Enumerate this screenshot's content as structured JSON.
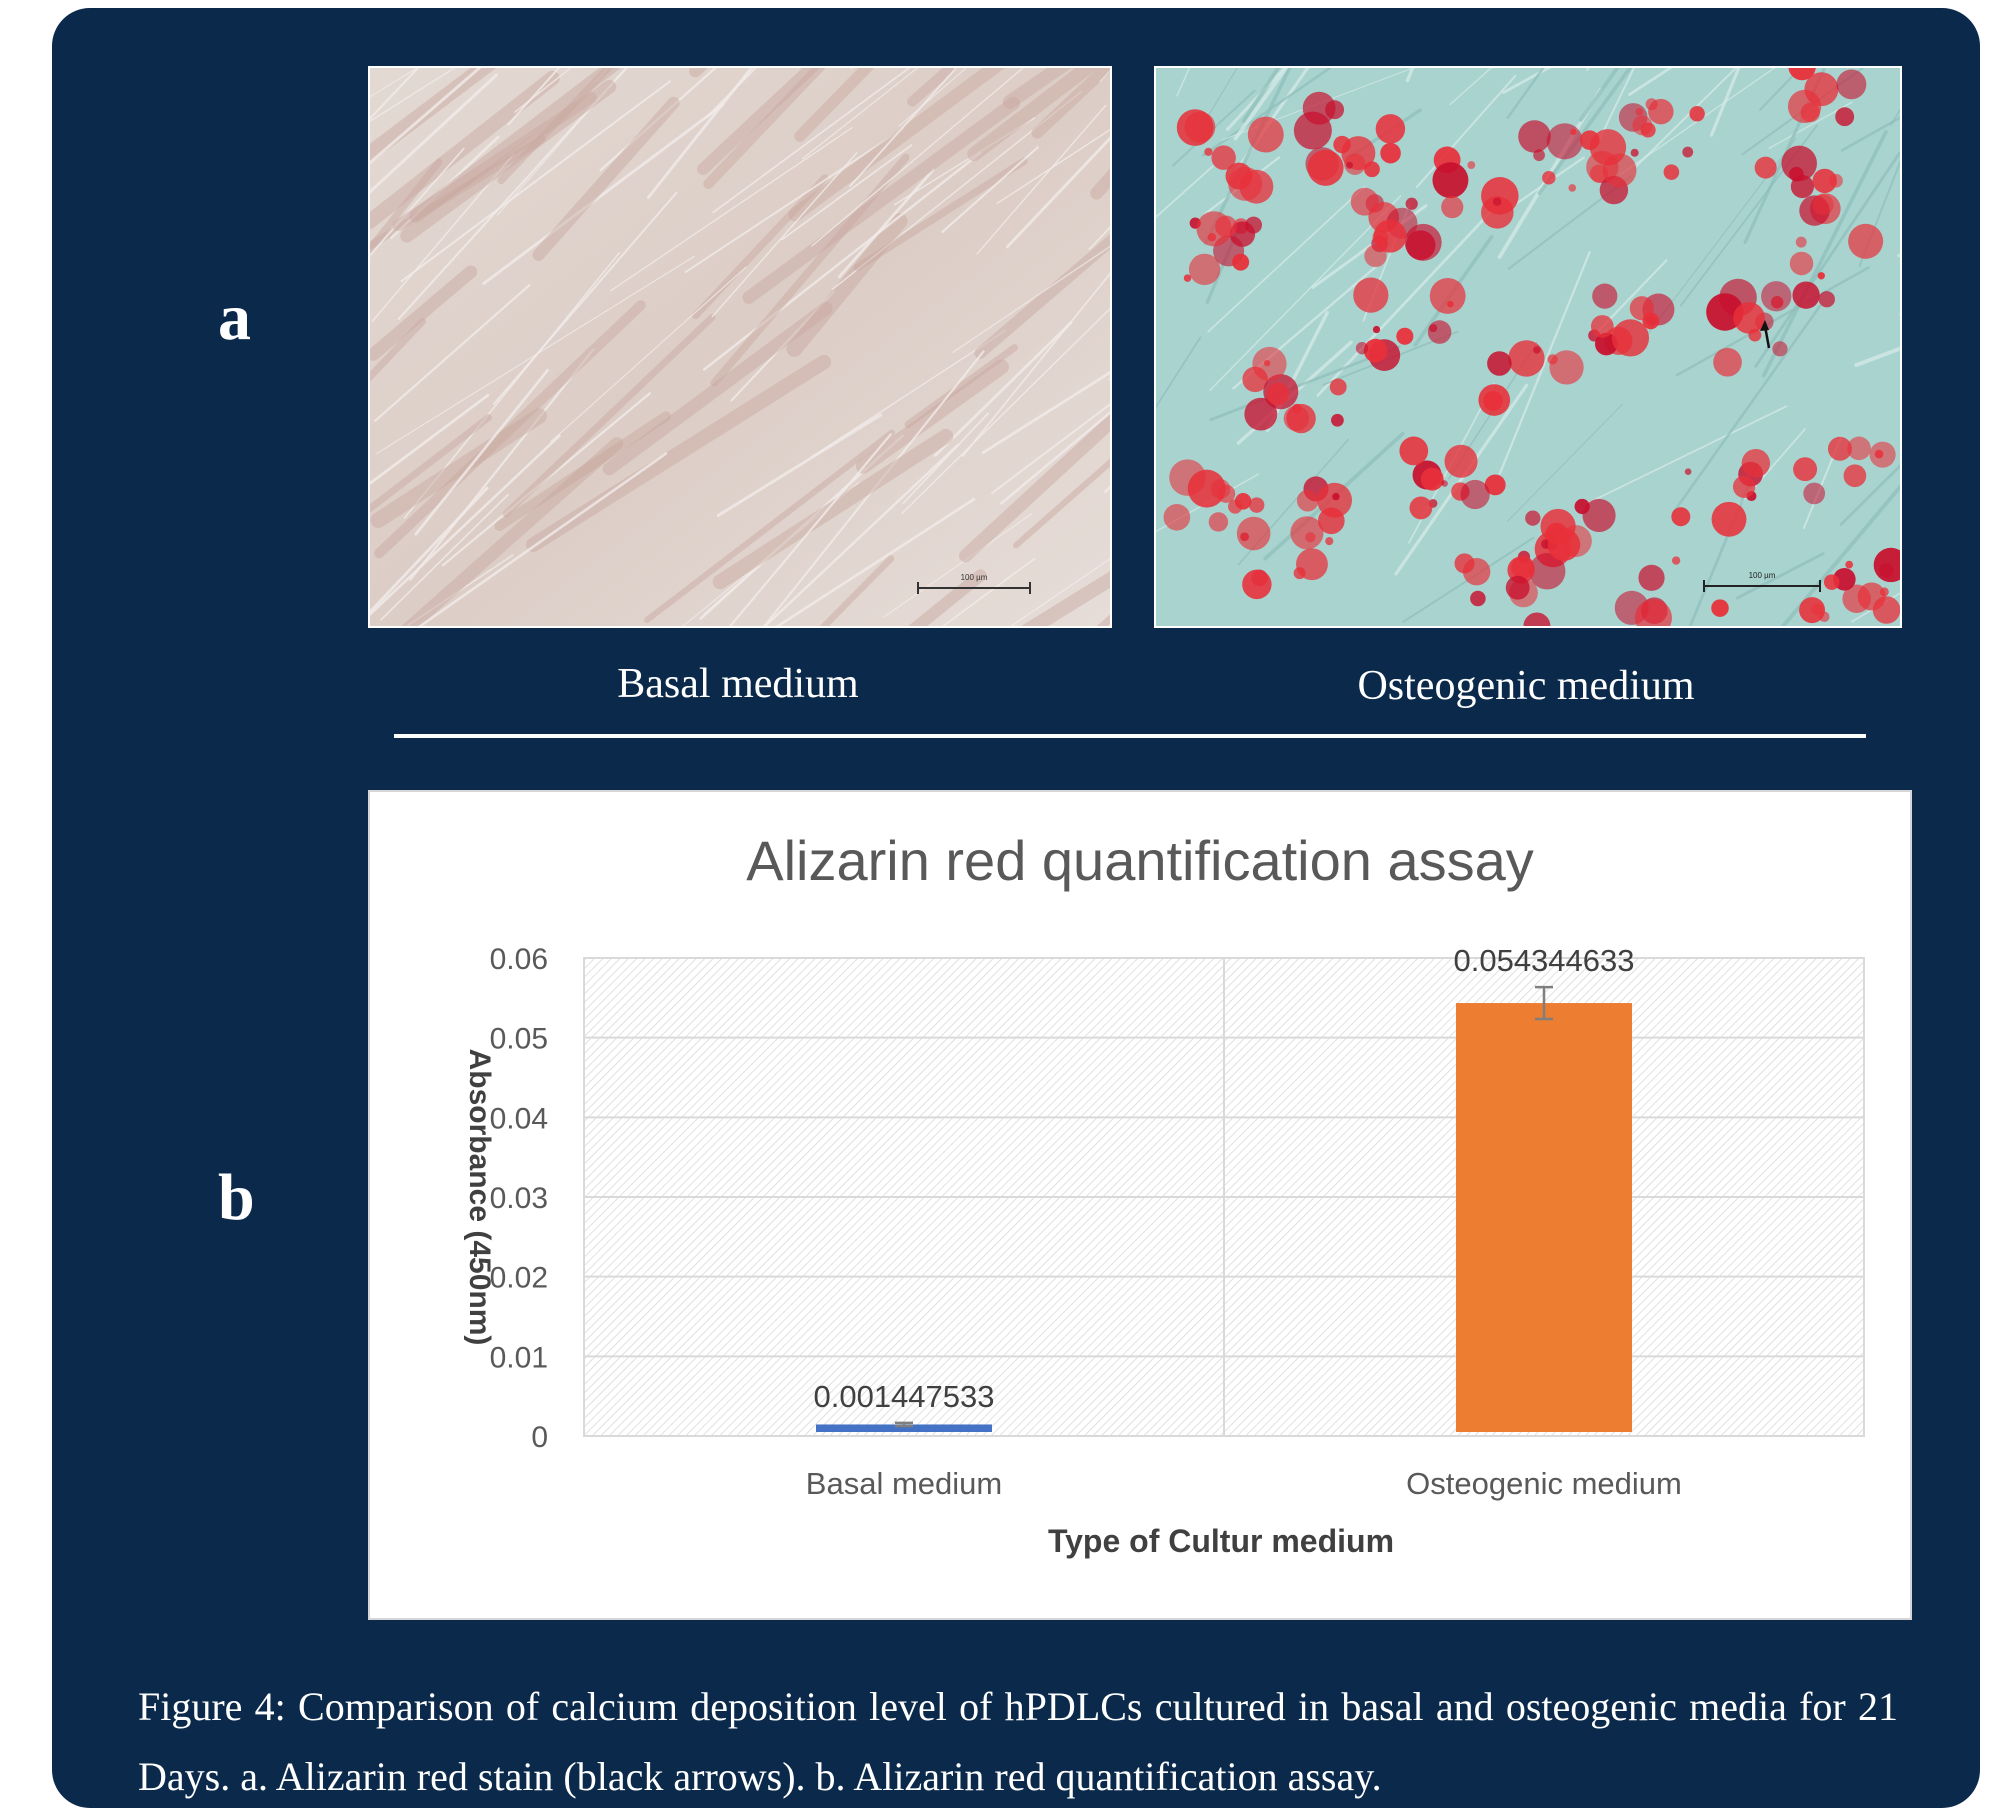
{
  "panels": {
    "a_label": "a",
    "b_label": "b"
  },
  "images": {
    "left_caption": "Basal medium",
    "right_caption": "Osteogenic medium",
    "left_scale_label": "100 µm",
    "right_scale_label": "100 µm"
  },
  "chart_data": {
    "type": "bar",
    "title": "Alizarin red quantification assay",
    "xlabel": "Type of Cultur medium",
    "ylabel": "Absorbance (450nm)",
    "categories": [
      "Basal medium",
      "Osteogenic medium"
    ],
    "values": [
      0.001447533,
      0.054344633
    ],
    "value_labels": [
      "0.001447533",
      "0.054344633"
    ],
    "errors": [
      0.0002,
      0.002
    ],
    "colors": [
      "#4472c4",
      "#ed7d31"
    ],
    "ylim": [
      0,
      0.06
    ],
    "yticks": [
      0,
      0.01,
      0.02,
      0.03,
      0.04,
      0.05,
      0.06
    ],
    "ytick_labels": [
      "0",
      "0.01",
      "0.02",
      "0.03",
      "0.04",
      "0.05",
      "0.06"
    ],
    "grid": true
  },
  "caption": "Figure 4: Comparison of calcium deposition level of hPDLCs cultured in basal and osteogenic media for 21 Days. a. Alizarin red stain (black arrows). b. Alizarin red quantification assay."
}
